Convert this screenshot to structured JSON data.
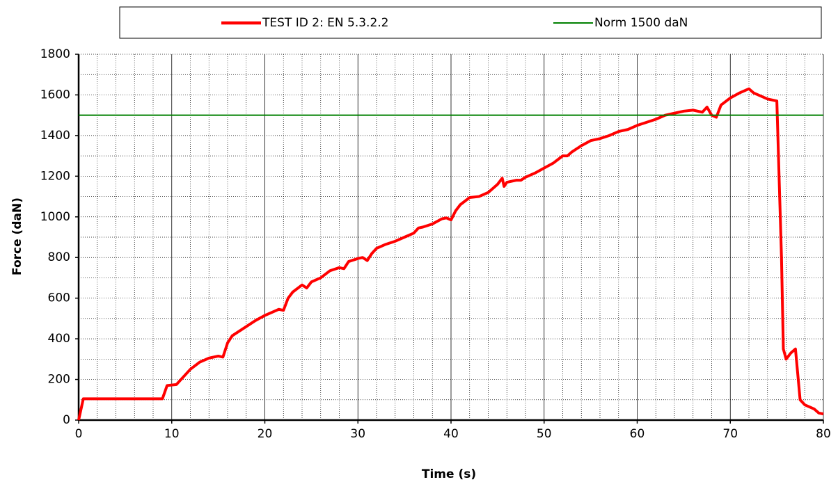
{
  "chart_data": {
    "type": "line",
    "xlabel": "Time (s)",
    "ylabel": "Force (daN)",
    "xlim": [
      0,
      80
    ],
    "ylim": [
      0,
      1800
    ],
    "xticks": [
      0,
      10,
      20,
      30,
      40,
      50,
      60,
      70,
      80
    ],
    "yticks": [
      0,
      200,
      400,
      600,
      800,
      1000,
      1200,
      1400,
      1600,
      1800
    ],
    "xminorticks": [
      2,
      4,
      6,
      8,
      12,
      14,
      16,
      18,
      22,
      24,
      26,
      28,
      32,
      34,
      36,
      38,
      42,
      44,
      46,
      48,
      52,
      54,
      56,
      58,
      62,
      64,
      66,
      68,
      72,
      74,
      76,
      78
    ],
    "yminorticks": [
      100,
      300,
      500,
      700,
      900,
      1100,
      1300,
      1500,
      1700
    ],
    "grid": true,
    "legend": "top",
    "series": [
      {
        "name": "TEST ID 2: EN 5.3.2.2",
        "color": "#ff0000",
        "x": [
          0,
          0.5,
          9,
          9.5,
          10.5,
          11,
          12,
          13,
          14,
          15,
          15.5,
          16,
          16.5,
          18,
          19,
          20,
          21,
          21.5,
          22,
          22.5,
          23,
          24,
          24.5,
          25,
          26,
          27,
          28,
          28.5,
          29,
          30,
          30.5,
          31,
          31.5,
          32,
          33,
          34,
          35,
          36,
          36.5,
          37,
          38,
          39,
          39.5,
          40,
          40.5,
          41,
          42,
          43,
          44,
          45,
          45.5,
          45.7,
          46,
          47,
          47.5,
          48,
          49,
          50,
          51,
          52,
          52.5,
          53,
          54,
          55,
          56,
          57,
          58,
          59,
          60,
          61,
          62,
          63,
          64,
          65,
          66,
          67,
          67.5,
          68,
          68.5,
          69,
          70,
          71,
          72,
          72.5,
          74,
          75,
          75.5,
          75.7,
          76,
          76.5,
          77,
          77.5,
          78,
          79,
          79.5,
          80
        ],
        "values": [
          0,
          105,
          105,
          170,
          175,
          200,
          250,
          285,
          305,
          315,
          310,
          380,
          415,
          460,
          490,
          515,
          535,
          545,
          540,
          600,
          630,
          665,
          650,
          680,
          700,
          735,
          750,
          745,
          780,
          795,
          800,
          785,
          820,
          845,
          865,
          880,
          900,
          920,
          945,
          950,
          965,
          990,
          995,
          985,
          1030,
          1060,
          1095,
          1100,
          1120,
          1160,
          1190,
          1150,
          1170,
          1180,
          1180,
          1195,
          1215,
          1240,
          1265,
          1300,
          1300,
          1320,
          1350,
          1375,
          1385,
          1400,
          1420,
          1430,
          1450,
          1465,
          1480,
          1500,
          1510,
          1520,
          1525,
          1515,
          1540,
          1500,
          1490,
          1550,
          1585,
          1610,
          1630,
          1610,
          1580,
          1570,
          800,
          350,
          300,
          330,
          350,
          100,
          75,
          55,
          35,
          30
        ]
      },
      {
        "name": "Norm 1500 daN",
        "color": "#008000",
        "x": [
          0,
          80
        ],
        "values": [
          1500,
          1500
        ]
      }
    ]
  }
}
